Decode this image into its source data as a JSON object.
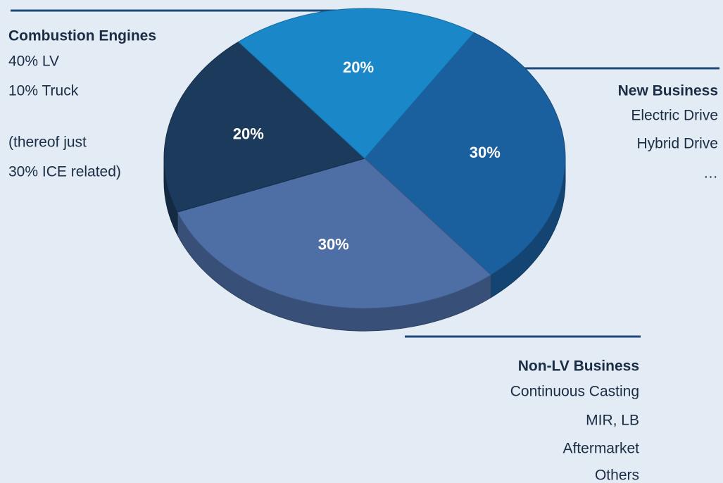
{
  "chart_data": {
    "type": "pie3d",
    "categories": [
      null,
      null,
      null,
      null
    ],
    "values": [
      30,
      30,
      20,
      20
    ],
    "value_labels": [
      "30%",
      "30%",
      "20%",
      "20%"
    ],
    "colors": [
      "#1a5f9e",
      "#4e6ea6",
      "#1b3a5c",
      "#1a87c9"
    ],
    "annotations": [
      {
        "title": "Combustion Engines",
        "lines": [
          "40% LV",
          "10% Truck",
          "(thereof just",
          "30% ICE related)"
        ]
      },
      {
        "title": "New Business",
        "lines": [
          "Electric Drive",
          "Hybrid Drive",
          "…"
        ]
      },
      {
        "title": "Non-LV Business",
        "lines": [
          "Continuous Casting",
          "MIR, LB",
          "Aftermarket",
          "Others"
        ]
      }
    ]
  }
}
